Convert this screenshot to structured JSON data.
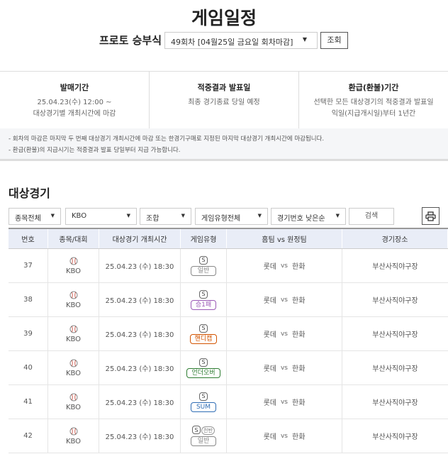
{
  "header": {
    "title": "게임일정",
    "game_label": "프로토 승부식",
    "round_select": "49회차 [04월25일 금요일 회차마감]",
    "query_button": "조회"
  },
  "info": [
    {
      "title": "발매기간",
      "lines": [
        "25.04.23(수) 12:00 ~",
        "대상경기별 개최시간에 마감"
      ]
    },
    {
      "title": "적중결과 발표일",
      "lines": [
        "최종 경기종료 당일 예정"
      ]
    },
    {
      "title": "환급(환불)기간",
      "lines": [
        "선택한 모든 대상경기의 적중결과 발표일",
        "익일(지급개시일)부터 1년간"
      ]
    }
  ],
  "notes": [
    "- 회차의 마감은 마지막 두 번째 대상경기 개최시간에 마감 또는 한경기구매로 지정된 마지막 대상경기 개최시간에 마감됩니다.",
    "- 환급(환불)의 지급시기는 적중결과 발표 당일부터 지급 가능합니다."
  ],
  "section_title": "대상경기",
  "filters": {
    "sport": "종목전체",
    "league": "KBO",
    "combo": "조합",
    "game_type": "게임유형전체",
    "sort": "경기번호 낮은순",
    "search_button": "검색",
    "print_icon": "printer-icon"
  },
  "table": {
    "headers": [
      "번호",
      "종목/대회",
      "대상경기 개최시간",
      "게임유형",
      "홈팀 vs 원정팀",
      "경기장소"
    ]
  },
  "games": [
    {
      "no": "37",
      "league": "KBO",
      "time": "25.04.23 (수) 18:30",
      "s": "S",
      "half": "",
      "type": "일반",
      "type_color": "#888888",
      "home": "롯데",
      "vs": "vs",
      "away": "한화",
      "venue": "부산사직야구장"
    },
    {
      "no": "38",
      "league": "KBO",
      "time": "25.04.23 (수) 18:30",
      "s": "S",
      "half": "",
      "type": "승1패",
      "type_color": "#9b59b6",
      "home": "롯데",
      "vs": "vs",
      "away": "한화",
      "venue": "부산사직야구장"
    },
    {
      "no": "39",
      "league": "KBO",
      "time": "25.04.23 (수) 18:30",
      "s": "S",
      "half": "",
      "type": "핸디캡",
      "type_color": "#d35400",
      "home": "롯데",
      "vs": "vs",
      "away": "한화",
      "venue": "부산사직야구장"
    },
    {
      "no": "40",
      "league": "KBO",
      "time": "25.04.23 (수) 18:30",
      "s": "S",
      "half": "",
      "type": "언더오버",
      "type_color": "#2e7d32",
      "home": "롯데",
      "vs": "vs",
      "away": "한화",
      "venue": "부산사직야구장"
    },
    {
      "no": "41",
      "league": "KBO",
      "time": "25.04.23 (수) 18:30",
      "s": "S",
      "half": "",
      "type": "SUM",
      "type_color": "#2f6db5",
      "home": "롯데",
      "vs": "vs",
      "away": "한화",
      "venue": "부산사직야구장"
    },
    {
      "no": "42",
      "league": "KBO",
      "time": "25.04.23 (수) 18:30",
      "s": "S",
      "half": "전반",
      "type": "일반",
      "type_color": "#888888",
      "home": "롯데",
      "vs": "vs",
      "away": "한화",
      "venue": "부산사직야구장"
    }
  ]
}
